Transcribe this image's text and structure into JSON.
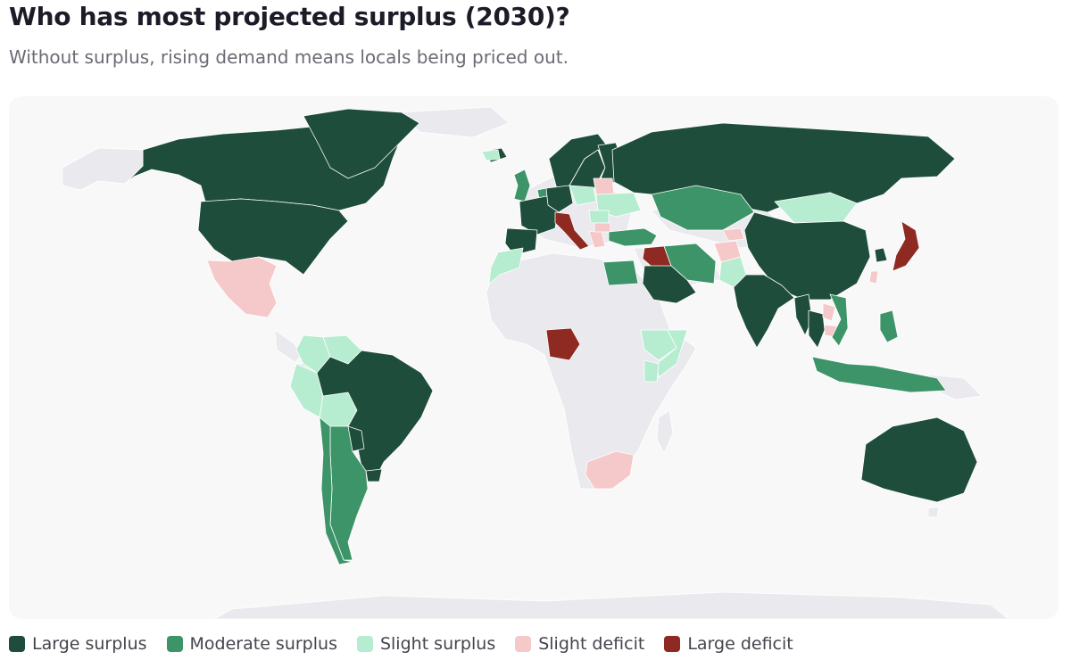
{
  "title": "Who has most projected surplus (2030)?",
  "subtitle": "Without surplus, rising demand means locals being priced out.",
  "legend": [
    {
      "key": "large_surplus",
      "label": "Large surplus",
      "color": "#1f4d3b"
    },
    {
      "key": "moderate_surplus",
      "label": "Moderate surplus",
      "color": "#3d9468"
    },
    {
      "key": "slight_surplus",
      "label": "Slight surplus",
      "color": "#b6ecd0"
    },
    {
      "key": "slight_deficit",
      "label": "Slight deficit",
      "color": "#f5c9c9"
    },
    {
      "key": "large_deficit",
      "label": "Large deficit",
      "color": "#8f2a22"
    }
  ],
  "no_data_color": "#e9e9ee",
  "chart_data": {
    "type": "choropleth",
    "categories": {
      "large_surplus": [
        "United States",
        "Canada",
        "Greenland",
        "Brazil",
        "Uruguay",
        "Paraguay",
        "Russia",
        "China",
        "India",
        "Saudi Arabia",
        "Australia",
        "France",
        "Spain",
        "Germany",
        "Norway",
        "Sweden",
        "Finland",
        "Iceland",
        "Myanmar",
        "Thailand",
        "South Korea"
      ],
      "moderate_surplus": [
        "Chile",
        "Argentina",
        "Kazakhstan",
        "Iran",
        "Turkey",
        "Egypt",
        "Vietnam",
        "Indonesia",
        "Philippines",
        "United Kingdom",
        "Netherlands"
      ],
      "slight_surplus": [
        "Colombia",
        "Venezuela",
        "Peru",
        "Bolivia",
        "Ethiopia",
        "Somalia",
        "Kenya",
        "Morocco",
        "Mongolia",
        "Poland",
        "Ukraine",
        "Romania",
        "Svalbard",
        "Pakistan"
      ],
      "slight_deficit": [
        "Mexico",
        "South Africa",
        "Laos",
        "Cambodia",
        "Taiwan",
        "Belarus",
        "Greece",
        "Bulgaria",
        "Afghanistan",
        "Kyrgyzstan"
      ],
      "large_deficit": [
        "Japan",
        "Italy",
        "Iraq",
        "Nigeria"
      ]
    }
  }
}
